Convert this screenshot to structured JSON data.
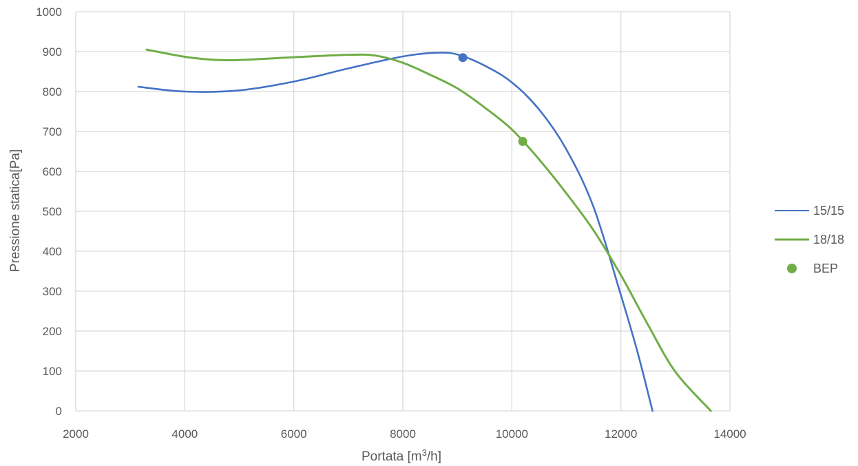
{
  "chart_data": {
    "type": "line",
    "title": "",
    "xlabel": "Portata [m",
    "xlabel_sup": "3",
    "xlabel_end": "/h]",
    "ylabel": "Pressione statica[Pa]",
    "xlim": [
      2000,
      14000
    ],
    "ylim": [
      0,
      1000
    ],
    "x_ticks": [
      2000,
      4000,
      6000,
      8000,
      10000,
      12000,
      14000
    ],
    "y_ticks": [
      0,
      100,
      200,
      300,
      400,
      500,
      600,
      700,
      800,
      900,
      1000
    ],
    "grid": true,
    "legend_position": "right",
    "series": [
      {
        "name": "15/15",
        "color": "#4472C4",
        "points": [
          [
            3150,
            812
          ],
          [
            4000,
            800
          ],
          [
            5000,
            803
          ],
          [
            6000,
            825
          ],
          [
            7000,
            858
          ],
          [
            8000,
            888
          ],
          [
            8600,
            897
          ],
          [
            9000,
            893
          ],
          [
            9500,
            865
          ],
          [
            10000,
            823
          ],
          [
            10500,
            755
          ],
          [
            11000,
            655
          ],
          [
            11500,
            510
          ],
          [
            12000,
            290
          ],
          [
            12300,
            150
          ],
          [
            12580,
            0
          ]
        ]
      },
      {
        "name": "18/18",
        "color": "#70AD47",
        "points": [
          [
            3300,
            905
          ],
          [
            4000,
            887
          ],
          [
            4500,
            880
          ],
          [
            5000,
            879
          ],
          [
            6000,
            886
          ],
          [
            7000,
            892
          ],
          [
            7500,
            890
          ],
          [
            8000,
            872
          ],
          [
            8500,
            842
          ],
          [
            9000,
            808
          ],
          [
            9500,
            760
          ],
          [
            10000,
            705
          ],
          [
            10500,
            630
          ],
          [
            11000,
            545
          ],
          [
            11500,
            452
          ],
          [
            12000,
            340
          ],
          [
            12500,
            215
          ],
          [
            13000,
            98
          ],
          [
            13650,
            0
          ]
        ]
      }
    ],
    "bep": {
      "name": "BEP",
      "color": "#70AD47",
      "points": [
        {
          "x": 9100,
          "y": 885,
          "color": "#4472C4"
        },
        {
          "x": 10200,
          "y": 675,
          "color": "#70AD47"
        }
      ]
    }
  }
}
